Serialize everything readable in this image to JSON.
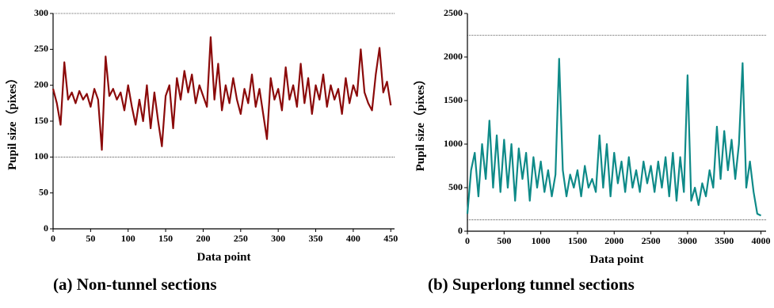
{
  "chart_data": [
    {
      "type": "line",
      "title": "(a) Non-tunnel sections",
      "x_label": "Data point",
      "y_label": "Pupil size（pixes）",
      "xlim": [
        0,
        455
      ],
      "ylim": [
        0,
        300
      ],
      "xticks": [
        0,
        50,
        100,
        150,
        200,
        250,
        300,
        350,
        400,
        450
      ],
      "yticks": [
        0,
        50,
        100,
        150,
        200,
        250,
        300
      ],
      "reference_lines": [
        300,
        100
      ],
      "x": [
        0,
        5,
        10,
        15,
        20,
        25,
        30,
        35,
        40,
        45,
        50,
        55,
        60,
        65,
        70,
        75,
        80,
        85,
        90,
        95,
        100,
        105,
        110,
        115,
        120,
        125,
        130,
        135,
        140,
        145,
        150,
        155,
        160,
        165,
        170,
        175,
        180,
        185,
        190,
        195,
        200,
        205,
        210,
        215,
        220,
        225,
        230,
        235,
        240,
        245,
        250,
        255,
        260,
        265,
        270,
        275,
        280,
        285,
        290,
        295,
        300,
        305,
        310,
        315,
        320,
        325,
        330,
        335,
        340,
        345,
        350,
        355,
        360,
        365,
        370,
        375,
        380,
        385,
        390,
        395,
        400,
        405,
        410,
        415,
        420,
        425,
        430,
        435,
        440,
        445,
        450
      ],
      "series": [
        {
          "color": "#8b0a0a",
          "values": [
            195,
            175,
            145,
            232,
            180,
            190,
            175,
            192,
            180,
            188,
            170,
            195,
            180,
            110,
            240,
            185,
            195,
            180,
            190,
            165,
            200,
            170,
            145,
            180,
            150,
            200,
            140,
            190,
            150,
            115,
            185,
            200,
            140,
            210,
            180,
            220,
            190,
            215,
            175,
            200,
            185,
            170,
            267,
            180,
            230,
            165,
            200,
            175,
            210,
            180,
            160,
            195,
            175,
            215,
            170,
            195,
            160,
            125,
            210,
            180,
            195,
            165,
            225,
            180,
            200,
            170,
            230,
            175,
            210,
            160,
            200,
            180,
            215,
            170,
            200,
            180,
            195,
            160,
            210,
            175,
            200,
            185,
            250,
            190,
            175,
            165,
            215,
            252,
            190,
            205,
            172
          ]
        }
      ]
    },
    {
      "type": "line",
      "title": "(b) Superlong tunnel sections",
      "x_label": "Data point",
      "y_label": "Pupil size（pixes）",
      "xlim": [
        0,
        4070
      ],
      "ylim": [
        0,
        2500
      ],
      "xticks": [
        0,
        500,
        1000,
        1500,
        2000,
        2500,
        3000,
        3500,
        4000
      ],
      "yticks": [
        0,
        500,
        1000,
        1500,
        2000,
        2500
      ],
      "reference_lines": [
        2250,
        130
      ],
      "x": [
        0,
        50,
        100,
        150,
        200,
        250,
        300,
        350,
        400,
        450,
        500,
        550,
        600,
        650,
        700,
        750,
        800,
        850,
        900,
        950,
        1000,
        1050,
        1100,
        1150,
        1200,
        1250,
        1300,
        1350,
        1400,
        1450,
        1500,
        1550,
        1600,
        1650,
        1700,
        1750,
        1800,
        1850,
        1900,
        1950,
        2000,
        2050,
        2100,
        2150,
        2200,
        2250,
        2300,
        2350,
        2400,
        2450,
        2500,
        2550,
        2600,
        2650,
        2700,
        2750,
        2800,
        2850,
        2900,
        2950,
        3000,
        3050,
        3100,
        3150,
        3200,
        3250,
        3300,
        3350,
        3400,
        3450,
        3500,
        3550,
        3600,
        3650,
        3700,
        3750,
        3800,
        3850,
        3900,
        3950,
        4000
      ],
      "series": [
        {
          "color": "#0e8a88",
          "values": [
            200,
            700,
            900,
            400,
            1000,
            600,
            1270,
            500,
            1100,
            450,
            1050,
            500,
            1000,
            350,
            950,
            600,
            900,
            350,
            850,
            500,
            800,
            450,
            700,
            400,
            650,
            1980,
            700,
            400,
            650,
            500,
            700,
            400,
            750,
            500,
            600,
            450,
            1100,
            500,
            1000,
            400,
            900,
            550,
            800,
            450,
            850,
            500,
            700,
            450,
            800,
            550,
            750,
            450,
            800,
            500,
            850,
            400,
            900,
            350,
            850,
            450,
            1790,
            350,
            500,
            300,
            550,
            400,
            700,
            500,
            1200,
            600,
            1150,
            700,
            1050,
            600,
            1000,
            1930,
            500,
            800,
            450,
            200,
            180
          ]
        }
      ]
    }
  ]
}
